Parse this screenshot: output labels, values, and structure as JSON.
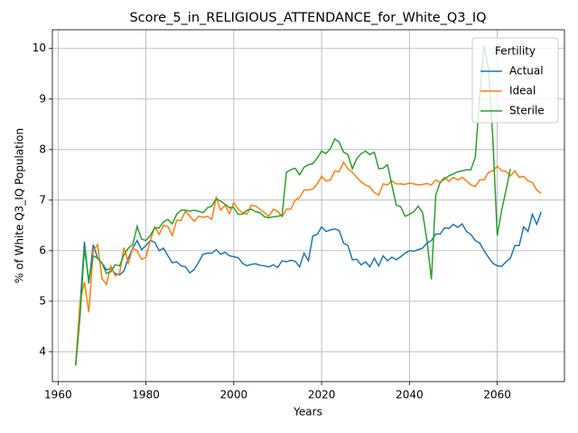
{
  "chart_data": {
    "type": "line",
    "title": "Score_5_in_RELIGIOUS_ATTENDANCE_for_White_Q3_IQ",
    "x_label": "Years",
    "y_label": "% of White Q3_IQ Population",
    "legend_title": "Fertility",
    "legend_loc": "upper right",
    "grid": true,
    "xlim": [
      1958.7,
      2075.3
    ],
    "ylim": [
      3.41,
      10.37
    ],
    "xticks": [
      1960,
      1980,
      2000,
      2020,
      2040,
      2060
    ],
    "yticks": [
      4,
      5,
      6,
      7,
      8,
      9,
      10
    ],
    "x": [
      1964,
      1965,
      1966,
      1967,
      1968,
      1969,
      1970,
      1971,
      1972,
      1973,
      1974,
      1975,
      1976,
      1977,
      1978,
      1979,
      1980,
      1981,
      1982,
      1983,
      1984,
      1985,
      1986,
      1987,
      1988,
      1989,
      1990,
      1991,
      1992,
      1993,
      1994,
      1995,
      1996,
      1997,
      1998,
      1999,
      2000,
      2001,
      2002,
      2003,
      2004,
      2005,
      2006,
      2007,
      2008,
      2009,
      2010,
      2011,
      2012,
      2013,
      2014,
      2015,
      2016,
      2017,
      2018,
      2019,
      2020,
      2021,
      2022,
      2023,
      2024,
      2025,
      2026,
      2027,
      2028,
      2029,
      2030,
      2031,
      2032,
      2033,
      2034,
      2035,
      2036,
      2037,
      2038,
      2039,
      2040,
      2041,
      2042,
      2043,
      2044,
      2045,
      2046,
      2047,
      2048,
      2049,
      2050,
      2051,
      2052,
      2053,
      2054,
      2055,
      2056,
      2057,
      2058,
      2059,
      2060,
      2061,
      2062,
      2063,
      2064,
      2065,
      2066,
      2067,
      2068,
      2069,
      2070
    ],
    "series": [
      {
        "name": "Actual",
        "color": "#1f77b4",
        "values": [
          3.73,
          4.9,
          6.18,
          5.35,
          6.12,
          5.85,
          5.75,
          5.62,
          5.65,
          5.55,
          5.52,
          5.6,
          5.85,
          6.05,
          6.2,
          6.02,
          6.1,
          6.2,
          6.17,
          6.0,
          6.05,
          5.9,
          5.76,
          5.78,
          5.7,
          5.68,
          5.56,
          5.63,
          5.77,
          5.93,
          5.95,
          5.95,
          6.02,
          5.93,
          5.97,
          5.9,
          5.88,
          5.86,
          5.75,
          5.7,
          5.73,
          5.74,
          5.71,
          5.7,
          5.68,
          5.72,
          5.67,
          5.8,
          5.78,
          5.81,
          5.79,
          5.68,
          5.95,
          5.8,
          6.29,
          6.32,
          6.47,
          6.38,
          6.41,
          6.43,
          6.4,
          6.15,
          6.1,
          5.82,
          5.83,
          5.72,
          5.78,
          5.68,
          5.85,
          5.7,
          5.9,
          5.8,
          5.87,
          5.82,
          5.88,
          5.95,
          6.0,
          5.99,
          6.02,
          6.05,
          6.15,
          6.2,
          6.33,
          6.33,
          6.45,
          6.44,
          6.52,
          6.46,
          6.53,
          6.38,
          6.32,
          6.2,
          6.15,
          6.0,
          5.87,
          5.75,
          5.7,
          5.69,
          5.78,
          5.85,
          6.1,
          6.1,
          6.47,
          6.38,
          6.72,
          6.52,
          6.77
        ]
      },
      {
        "name": "Ideal",
        "color": "#ff7f0e",
        "values": [
          3.73,
          5.0,
          5.38,
          4.78,
          6.0,
          6.12,
          5.45,
          5.33,
          5.7,
          5.5,
          5.55,
          6.06,
          5.75,
          6.05,
          6.0,
          5.83,
          5.87,
          6.2,
          6.47,
          6.32,
          6.5,
          6.48,
          6.3,
          6.6,
          6.6,
          6.78,
          6.68,
          6.58,
          6.68,
          6.66,
          6.68,
          6.62,
          7.05,
          6.8,
          6.9,
          6.73,
          6.95,
          6.82,
          6.75,
          6.72,
          6.9,
          6.88,
          6.82,
          6.75,
          6.68,
          6.82,
          6.78,
          6.67,
          6.82,
          6.82,
          7.0,
          7.05,
          7.2,
          7.2,
          7.22,
          7.32,
          7.47,
          7.38,
          7.4,
          7.58,
          7.56,
          7.75,
          7.62,
          7.55,
          7.45,
          7.36,
          7.3,
          7.26,
          7.15,
          7.1,
          7.32,
          7.3,
          7.38,
          7.32,
          7.32,
          7.31,
          7.34,
          7.32,
          7.3,
          7.31,
          7.33,
          7.3,
          7.4,
          7.35,
          7.45,
          7.37,
          7.45,
          7.4,
          7.45,
          7.38,
          7.3,
          7.27,
          7.4,
          7.4,
          7.55,
          7.58,
          7.67,
          7.58,
          7.57,
          7.48,
          7.58,
          7.45,
          7.47,
          7.38,
          7.35,
          7.2,
          7.13
        ]
      },
      {
        "name": "Sterile",
        "color": "#2ca02c",
        "values": [
          3.73,
          4.7,
          6.05,
          5.4,
          5.9,
          5.85,
          5.75,
          5.55,
          5.58,
          5.72,
          5.7,
          5.92,
          6.05,
          6.12,
          6.48,
          6.23,
          6.2,
          6.3,
          6.45,
          6.45,
          6.57,
          6.62,
          6.53,
          6.72,
          6.8,
          6.8,
          6.78,
          6.8,
          6.78,
          6.75,
          6.85,
          6.88,
          7.03,
          6.98,
          6.92,
          6.85,
          6.85,
          6.72,
          6.72,
          6.8,
          6.82,
          6.77,
          6.75,
          6.67,
          6.65,
          6.67,
          6.68,
          6.7,
          7.55,
          7.6,
          7.63,
          7.5,
          7.65,
          7.7,
          7.72,
          7.83,
          7.97,
          7.92,
          8.02,
          8.21,
          8.15,
          7.95,
          7.9,
          7.62,
          7.82,
          7.92,
          7.97,
          7.9,
          7.95,
          7.62,
          7.63,
          7.7,
          7.3,
          6.9,
          6.87,
          6.68,
          6.72,
          6.77,
          6.88,
          6.75,
          6.2,
          5.43,
          7.1,
          7.35,
          7.42,
          7.48,
          7.52,
          7.56,
          7.58,
          7.6,
          7.6,
          7.85,
          9.05,
          10.05,
          9.6,
          8.2,
          6.3,
          6.8,
          7.2,
          7.62,
          null,
          null,
          null,
          null,
          null,
          null,
          null
        ]
      }
    ]
  }
}
